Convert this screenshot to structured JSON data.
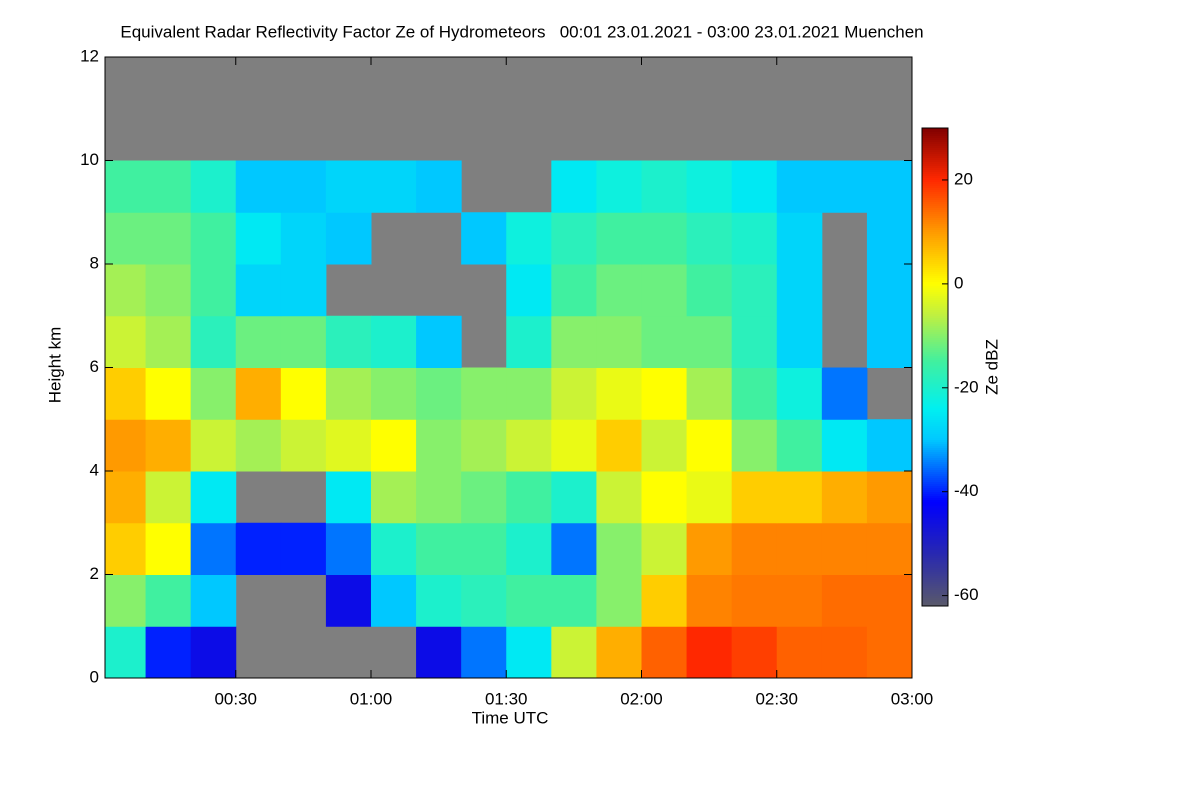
{
  "chart_data": {
    "type": "heatmap",
    "title": "Equivalent Radar Reflectivity Factor Ze of Hydrometeors   00:01 23.01.2021 - 03:00 23.01.2021 Muenchen",
    "xlabel": "Time UTC",
    "ylabel": "Height km",
    "colorbar_label": "Ze dBZ",
    "xlim": [
      1,
      180
    ],
    "ylim": [
      0,
      12
    ],
    "xticks": [
      {
        "value": 30,
        "label": "00:30"
      },
      {
        "value": 60,
        "label": "01:00"
      },
      {
        "value": 90,
        "label": "01:30"
      },
      {
        "value": 120,
        "label": "02:00"
      },
      {
        "value": 150,
        "label": "02:30"
      },
      {
        "value": 180,
        "label": "03:00"
      }
    ],
    "yticks": [
      0,
      2,
      4,
      6,
      8,
      10,
      12
    ],
    "clim": [
      -62,
      30
    ],
    "cticks": [
      -60,
      -40,
      -20,
      0,
      20
    ],
    "background_color": "#7f7f7f",
    "colorscale": [
      [
        -62,
        "#5a5a6a"
      ],
      [
        -52,
        "#2828b0"
      ],
      [
        -42,
        "#0000ff"
      ],
      [
        -30,
        "#00c8ff"
      ],
      [
        -24,
        "#00f0f0"
      ],
      [
        -15,
        "#40f0a0"
      ],
      [
        -6,
        "#c0f040"
      ],
      [
        0,
        "#ffff00"
      ],
      [
        10,
        "#ff9a00"
      ],
      [
        20,
        "#ff2800"
      ],
      [
        30,
        "#800000"
      ]
    ],
    "xbins": [
      0,
      10,
      20,
      30,
      40,
      50,
      60,
      70,
      80,
      90,
      100,
      110,
      120,
      130,
      140,
      150,
      160,
      170,
      180
    ],
    "ybins": [
      0,
      1,
      2,
      3,
      4,
      5,
      6,
      7,
      8,
      9,
      10,
      11,
      12
    ],
    "z": [
      [
        -20,
        -40,
        -45,
        null,
        null,
        null,
        null,
        -45,
        -35,
        -25,
        -5,
        8,
        15,
        20,
        18,
        15,
        15,
        14
      ],
      [
        -10,
        -15,
        -30,
        null,
        null,
        -45,
        -30,
        -20,
        -18,
        -15,
        -15,
        -10,
        5,
        12,
        13,
        13,
        14,
        14
      ],
      [
        5,
        0,
        -35,
        -40,
        -40,
        -35,
        -20,
        -15,
        -15,
        -20,
        -35,
        -10,
        -5,
        10,
        12,
        12,
        12,
        12
      ],
      [
        8,
        -5,
        -25,
        null,
        null,
        -25,
        -8,
        -10,
        -12,
        -15,
        -20,
        -5,
        0,
        -2,
        5,
        5,
        8,
        10
      ],
      [
        10,
        8,
        -5,
        -8,
        -5,
        -3,
        0,
        -10,
        -8,
        -5,
        -2,
        5,
        -5,
        0,
        -10,
        -15,
        -25,
        -30
      ],
      [
        5,
        0,
        -10,
        8,
        0,
        -8,
        -10,
        -12,
        -10,
        -10,
        -5,
        -2,
        0,
        -8,
        -15,
        -22,
        -35,
        null
      ],
      [
        -5,
        -8,
        -18,
        -12,
        -12,
        -18,
        -20,
        -30,
        null,
        -20,
        -10,
        -10,
        -12,
        -12,
        -18,
        -28,
        null,
        -30
      ],
      [
        -8,
        -10,
        -15,
        -28,
        -28,
        null,
        null,
        null,
        null,
        -25,
        -15,
        -12,
        -12,
        -15,
        -18,
        -28,
        null,
        -30
      ],
      [
        -12,
        -12,
        -15,
        -25,
        -28,
        -30,
        null,
        null,
        -30,
        -22,
        -18,
        -15,
        -15,
        -18,
        -20,
        -28,
        null,
        -30
      ],
      [
        -15,
        -15,
        -20,
        -30,
        -30,
        -28,
        -28,
        -30,
        null,
        null,
        -25,
        -22,
        -20,
        -22,
        -25,
        -30,
        -30,
        -30
      ],
      [
        null,
        null,
        null,
        null,
        null,
        null,
        null,
        null,
        null,
        null,
        null,
        null,
        null,
        null,
        null,
        null,
        null,
        null
      ],
      [
        null,
        null,
        null,
        null,
        null,
        null,
        null,
        null,
        null,
        null,
        null,
        null,
        null,
        null,
        null,
        null,
        null,
        null
      ]
    ]
  }
}
